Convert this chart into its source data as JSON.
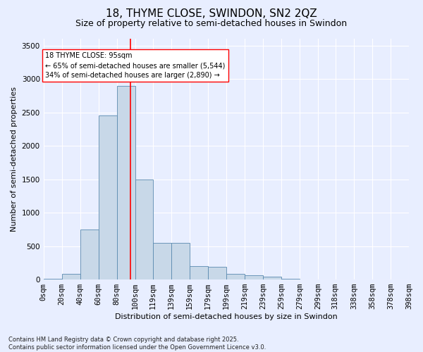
{
  "title": "18, THYME CLOSE, SWINDON, SN2 2QZ",
  "subtitle": "Size of property relative to semi-detached houses in Swindon",
  "xlabel": "Distribution of semi-detached houses by size in Swindon",
  "ylabel": "Number of semi-detached properties",
  "bin_labels": [
    "0sqm",
    "20sqm",
    "40sqm",
    "60sqm",
    "80sqm",
    "100sqm",
    "119sqm",
    "139sqm",
    "159sqm",
    "179sqm",
    "199sqm",
    "219sqm",
    "239sqm",
    "259sqm",
    "279sqm",
    "299sqm",
    "318sqm",
    "338sqm",
    "358sqm",
    "378sqm",
    "398sqm"
  ],
  "bin_edges": [
    0,
    20,
    40,
    60,
    80,
    100,
    119,
    139,
    159,
    179,
    199,
    219,
    239,
    259,
    279,
    299,
    318,
    338,
    358,
    378,
    398
  ],
  "bar_heights": [
    10,
    80,
    750,
    2450,
    2900,
    1500,
    550,
    550,
    200,
    190,
    80,
    60,
    40,
    10,
    5,
    5,
    5,
    0,
    0,
    0
  ],
  "bar_color": "#c8d8e8",
  "bar_edge_color": "#5a8ab0",
  "property_size": 95,
  "vline_color": "red",
  "annotation_text": "18 THYME CLOSE: 95sqm\n← 65% of semi-detached houses are smaller (5,544)\n34% of semi-detached houses are larger (2,890) →",
  "annotation_box_color": "white",
  "annotation_box_edge_color": "red",
  "ylim": [
    0,
    3600
  ],
  "yticks": [
    0,
    500,
    1000,
    1500,
    2000,
    2500,
    3000,
    3500
  ],
  "background_color": "#e8eeff",
  "footer_text": "Contains HM Land Registry data © Crown copyright and database right 2025.\nContains public sector information licensed under the Open Government Licence v3.0.",
  "title_fontsize": 11,
  "subtitle_fontsize": 9,
  "axis_fontsize": 8,
  "tick_fontsize": 7.5,
  "footer_fontsize": 6
}
